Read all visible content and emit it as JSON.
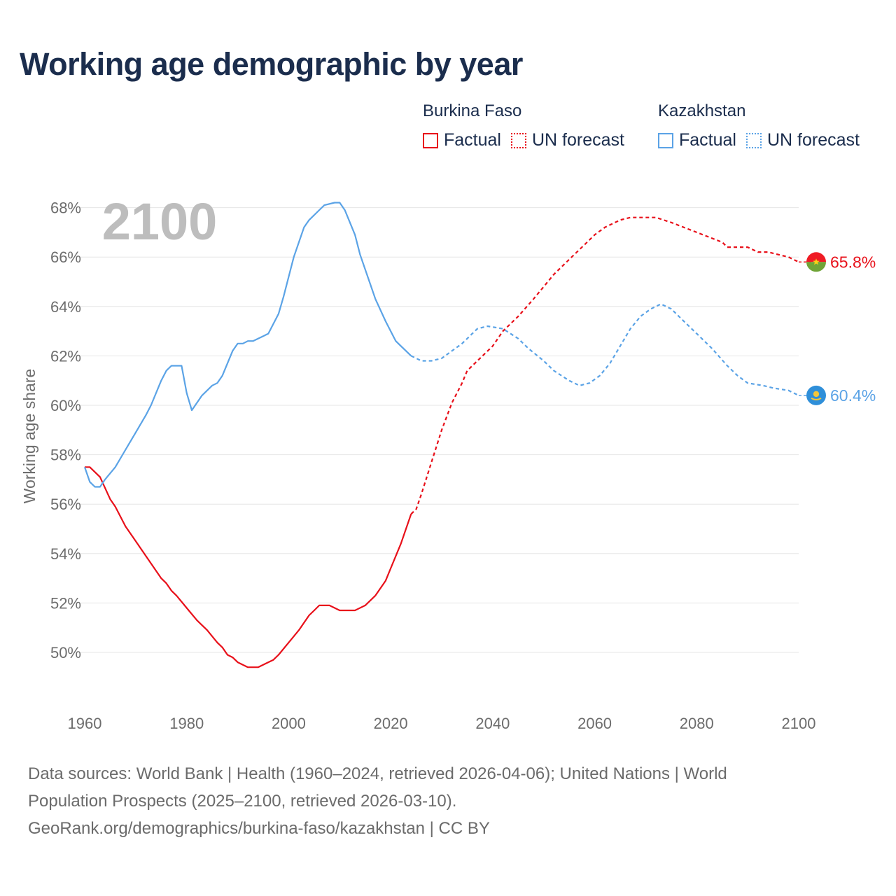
{
  "title": "Working age demographic by year",
  "legend": {
    "groups": [
      {
        "country": "Burkina Faso",
        "factual_label": "Factual",
        "forecast_label": "UN forecast",
        "color": "#e8101a"
      },
      {
        "country": "Kazakhstan",
        "factual_label": "Factual",
        "forecast_label": "UN forecast",
        "color": "#5ba3e6"
      }
    ]
  },
  "year_display": "2100",
  "chart_data": {
    "type": "line",
    "xlabel": "",
    "ylabel": "Working age share",
    "xlim": [
      1960,
      2100
    ],
    "ylim": [
      48.0,
      69.0
    ],
    "x_ticks": [
      1960,
      1980,
      2000,
      2020,
      2040,
      2060,
      2080,
      2100
    ],
    "y_ticks": [
      50,
      52,
      54,
      56,
      58,
      60,
      62,
      64,
      66,
      68
    ],
    "y_tick_labels": [
      "50%",
      "52%",
      "54%",
      "56%",
      "58%",
      "60%",
      "62%",
      "64%",
      "66%",
      "68%"
    ],
    "series": [
      {
        "name": "Burkina Faso",
        "color": "#e8101a",
        "factual_end_year": 2024,
        "end_label": "65.8%",
        "points": [
          [
            1960,
            57.5
          ],
          [
            1961,
            57.5
          ],
          [
            1963,
            57.1
          ],
          [
            1965,
            56.2
          ],
          [
            1966,
            55.9
          ],
          [
            1968,
            55.1
          ],
          [
            1970,
            54.5
          ],
          [
            1972,
            53.9
          ],
          [
            1974,
            53.3
          ],
          [
            1975,
            53.0
          ],
          [
            1976,
            52.8
          ],
          [
            1977,
            52.5
          ],
          [
            1978,
            52.3
          ],
          [
            1980,
            51.8
          ],
          [
            1982,
            51.3
          ],
          [
            1984,
            50.9
          ],
          [
            1986,
            50.4
          ],
          [
            1987,
            50.2
          ],
          [
            1988,
            49.9
          ],
          [
            1989,
            49.8
          ],
          [
            1990,
            49.6
          ],
          [
            1992,
            49.4
          ],
          [
            1994,
            49.4
          ],
          [
            1996,
            49.6
          ],
          [
            1997,
            49.7
          ],
          [
            1998,
            49.9
          ],
          [
            2000,
            50.4
          ],
          [
            2002,
            50.9
          ],
          [
            2003,
            51.2
          ],
          [
            2004,
            51.5
          ],
          [
            2005,
            51.7
          ],
          [
            2006,
            51.9
          ],
          [
            2008,
            51.9
          ],
          [
            2010,
            51.7
          ],
          [
            2013,
            51.7
          ],
          [
            2015,
            51.9
          ],
          [
            2017,
            52.3
          ],
          [
            2019,
            52.9
          ],
          [
            2020,
            53.4
          ],
          [
            2022,
            54.4
          ],
          [
            2024,
            55.6
          ],
          [
            2025,
            55.8
          ],
          [
            2026,
            56.4
          ],
          [
            2028,
            57.7
          ],
          [
            2030,
            59.0
          ],
          [
            2032,
            60.1
          ],
          [
            2034,
            60.9
          ],
          [
            2035,
            61.4
          ],
          [
            2037,
            61.8
          ],
          [
            2040,
            62.4
          ],
          [
            2042,
            63.0
          ],
          [
            2045,
            63.6
          ],
          [
            2048,
            64.3
          ],
          [
            2050,
            64.8
          ],
          [
            2052,
            65.3
          ],
          [
            2055,
            65.9
          ],
          [
            2058,
            66.5
          ],
          [
            2060,
            66.9
          ],
          [
            2062,
            67.2
          ],
          [
            2065,
            67.5
          ],
          [
            2067,
            67.6
          ],
          [
            2072,
            67.6
          ],
          [
            2075,
            67.4
          ],
          [
            2080,
            67.0
          ],
          [
            2085,
            66.6
          ],
          [
            2086,
            66.4
          ],
          [
            2090,
            66.4
          ],
          [
            2092,
            66.2
          ],
          [
            2094,
            66.2
          ],
          [
            2096,
            66.1
          ],
          [
            2098,
            66.0
          ],
          [
            2100,
            65.8
          ]
        ]
      },
      {
        "name": "Kazakhstan",
        "color": "#5ba3e6",
        "factual_end_year": 2024,
        "end_label": "60.4%",
        "points": [
          [
            1960,
            57.5
          ],
          [
            1961,
            56.9
          ],
          [
            1962,
            56.7
          ],
          [
            1963,
            56.7
          ],
          [
            1964,
            57.0
          ],
          [
            1966,
            57.5
          ],
          [
            1968,
            58.2
          ],
          [
            1970,
            58.9
          ],
          [
            1972,
            59.6
          ],
          [
            1973,
            60.0
          ],
          [
            1975,
            61.0
          ],
          [
            1976,
            61.4
          ],
          [
            1977,
            61.6
          ],
          [
            1979,
            61.6
          ],
          [
            1980,
            60.5
          ],
          [
            1981,
            59.8
          ],
          [
            1982,
            60.1
          ],
          [
            1983,
            60.4
          ],
          [
            1985,
            60.8
          ],
          [
            1986,
            60.9
          ],
          [
            1987,
            61.2
          ],
          [
            1989,
            62.2
          ],
          [
            1990,
            62.5
          ],
          [
            1991,
            62.5
          ],
          [
            1992,
            62.6
          ],
          [
            1993,
            62.6
          ],
          [
            1995,
            62.8
          ],
          [
            1996,
            62.9
          ],
          [
            1998,
            63.7
          ],
          [
            1999,
            64.4
          ],
          [
            2000,
            65.2
          ],
          [
            2001,
            66.0
          ],
          [
            2002,
            66.6
          ],
          [
            2003,
            67.2
          ],
          [
            2004,
            67.5
          ],
          [
            2006,
            67.9
          ],
          [
            2007,
            68.1
          ],
          [
            2009,
            68.2
          ],
          [
            2010,
            68.2
          ],
          [
            2011,
            67.9
          ],
          [
            2013,
            66.9
          ],
          [
            2014,
            66.1
          ],
          [
            2016,
            64.9
          ],
          [
            2017,
            64.3
          ],
          [
            2019,
            63.4
          ],
          [
            2021,
            62.6
          ],
          [
            2022,
            62.4
          ],
          [
            2024,
            62.0
          ],
          [
            2025,
            61.9
          ],
          [
            2026,
            61.8
          ],
          [
            2028,
            61.8
          ],
          [
            2030,
            61.9
          ],
          [
            2032,
            62.2
          ],
          [
            2034,
            62.5
          ],
          [
            2036,
            62.9
          ],
          [
            2037,
            63.1
          ],
          [
            2039,
            63.2
          ],
          [
            2042,
            63.1
          ],
          [
            2045,
            62.7
          ],
          [
            2047,
            62.3
          ],
          [
            2050,
            61.8
          ],
          [
            2052,
            61.4
          ],
          [
            2055,
            61.0
          ],
          [
            2057,
            60.8
          ],
          [
            2059,
            60.9
          ],
          [
            2061,
            61.2
          ],
          [
            2063,
            61.7
          ],
          [
            2065,
            62.4
          ],
          [
            2067,
            63.1
          ],
          [
            2069,
            63.6
          ],
          [
            2071,
            63.9
          ],
          [
            2073,
            64.1
          ],
          [
            2075,
            63.9
          ],
          [
            2077,
            63.5
          ],
          [
            2080,
            62.9
          ],
          [
            2083,
            62.3
          ],
          [
            2086,
            61.6
          ],
          [
            2088,
            61.2
          ],
          [
            2090,
            60.9
          ],
          [
            2093,
            60.8
          ],
          [
            2095,
            60.7
          ],
          [
            2098,
            60.6
          ],
          [
            2100,
            60.4
          ]
        ]
      }
    ]
  },
  "sources": {
    "line1": "Data sources: World Bank | Health (1960–2024, retrieved 2026-04-06); United Nations | World",
    "line2": "Population Prospects (2025–2100, retrieved 2026-03-10).",
    "line3": "GeoRank.org/demographics/burkina-faso/kazakhstan | CC BY"
  }
}
